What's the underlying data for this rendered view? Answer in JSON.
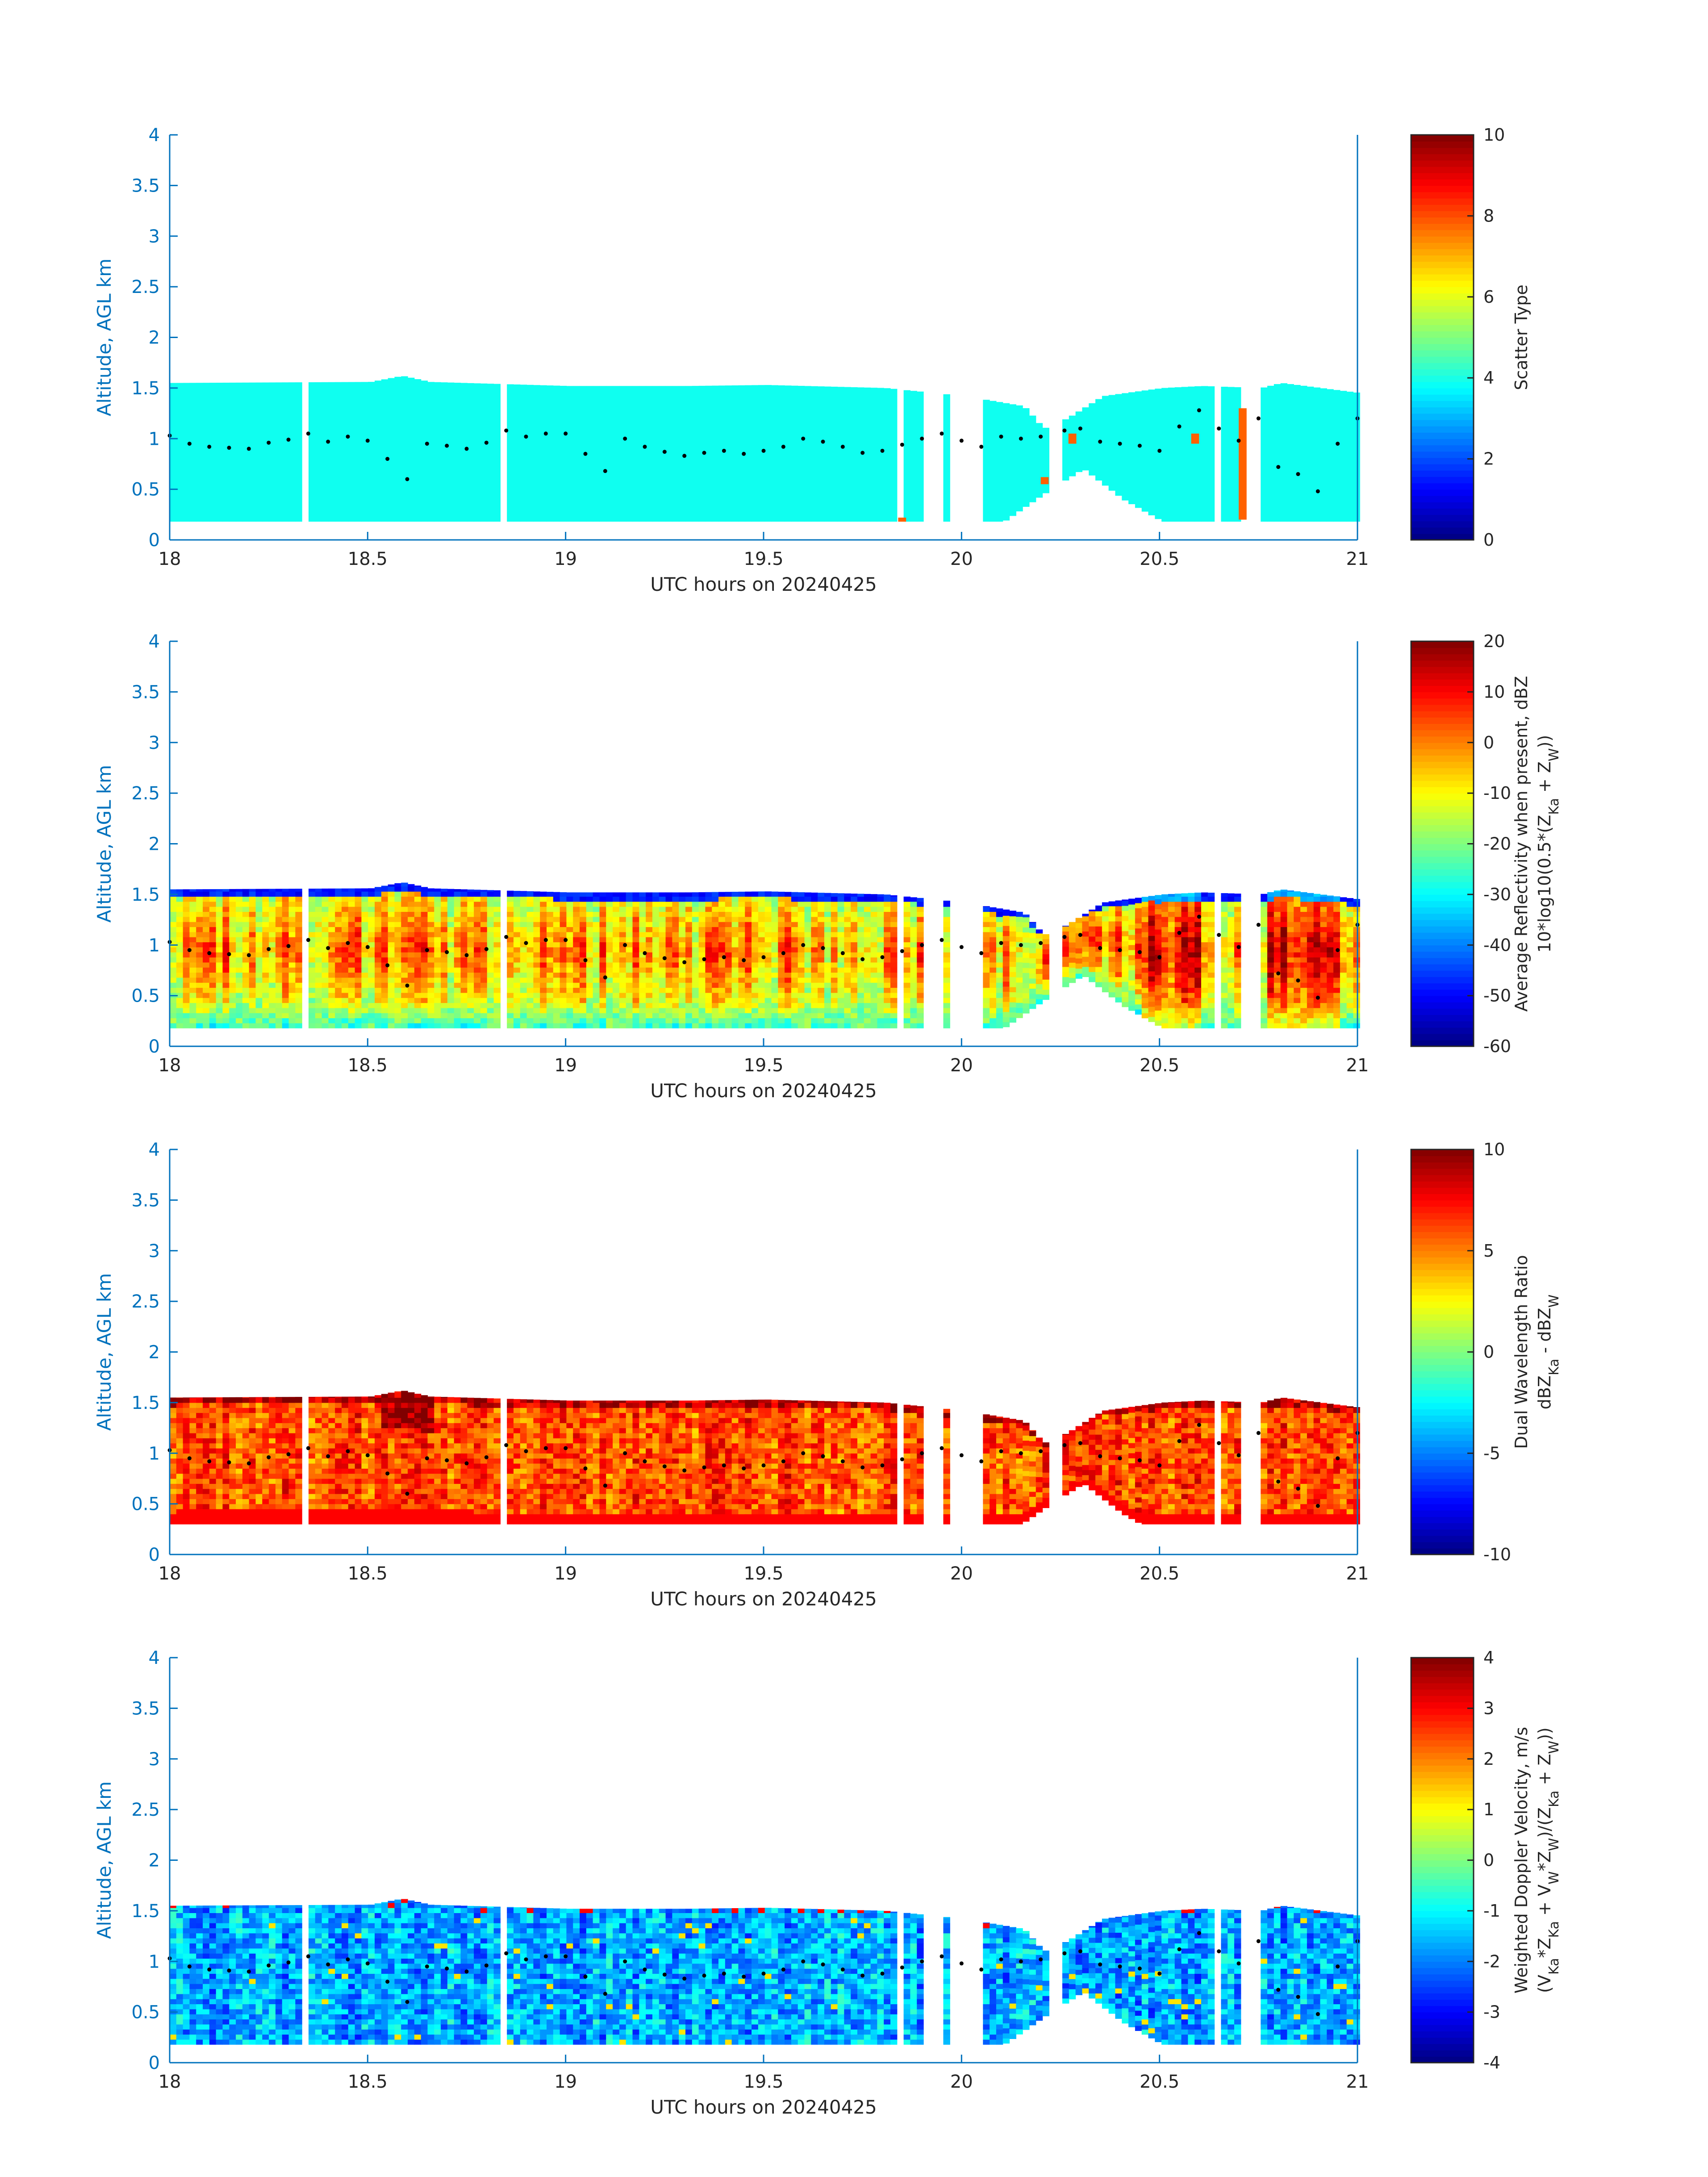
{
  "chart_data": [
    {
      "type": "heatmap",
      "xlabel": "UTC hours on 20240425",
      "ylabel": "Altitude, AGL km",
      "xlim": [
        18,
        21
      ],
      "ylim": [
        0,
        4
      ],
      "xticks": [
        "18",
        "18.5",
        "19",
        "19.5",
        "20",
        "20.5",
        "21"
      ],
      "yticks": [
        "0",
        "0.5",
        "1",
        "1.5",
        "2",
        "2.5",
        "3",
        "3.5",
        "4"
      ],
      "colorbar": {
        "label_lines": [
          "Scatter Type"
        ],
        "range": [
          0,
          10
        ],
        "ticks": [
          "0",
          "2",
          "4",
          "6",
          "8",
          "10"
        ]
      },
      "field": "scatter_type",
      "base_value": 3.9,
      "secondary_value": 7.8
    },
    {
      "type": "heatmap",
      "xlabel": "UTC hours on 20240425",
      "ylabel": "Altitude, AGL km",
      "xlim": [
        18,
        21
      ],
      "ylim": [
        0,
        4
      ],
      "xticks": [
        "18",
        "18.5",
        "19",
        "19.5",
        "20",
        "20.5",
        "21"
      ],
      "yticks": [
        "0",
        "0.5",
        "1",
        "1.5",
        "2",
        "2.5",
        "3",
        "3.5",
        "4"
      ],
      "colorbar": {
        "label_lines": [
          "Average Reflectivity when present, dBZ",
          "10*log10(0.5*(Z_Ka + Z_W))"
        ],
        "range": [
          -60,
          20
        ],
        "ticks": [
          "-60",
          "-50",
          "-40",
          "-30",
          "-20",
          "-10",
          "0",
          "10",
          "20"
        ]
      },
      "field": "reflectivity"
    },
    {
      "type": "heatmap",
      "xlabel": "UTC hours on 20240425",
      "ylabel": "Altitude, AGL km",
      "xlim": [
        18,
        21
      ],
      "ylim": [
        0,
        4
      ],
      "xticks": [
        "18",
        "18.5",
        "19",
        "19.5",
        "20",
        "20.5",
        "21"
      ],
      "yticks": [
        "0",
        "0.5",
        "1",
        "1.5",
        "2",
        "2.5",
        "3",
        "3.5",
        "4"
      ],
      "colorbar": {
        "label_lines": [
          "Dual Wavelength Ratio",
          "dBZ_Ka - dBZ_W"
        ],
        "range": [
          -10,
          10
        ],
        "ticks": [
          "-10",
          "-5",
          "0",
          "5",
          "10"
        ]
      },
      "field": "dwr"
    },
    {
      "type": "heatmap",
      "xlabel": "UTC hours on 20240425",
      "ylabel": "Altitude, AGL km",
      "xlim": [
        18,
        21
      ],
      "ylim": [
        0,
        4
      ],
      "xticks": [
        "18",
        "18.5",
        "19",
        "19.5",
        "20",
        "20.5",
        "21"
      ],
      "yticks": [
        "0",
        "0.5",
        "1",
        "1.5",
        "2",
        "2.5",
        "3",
        "3.5",
        "4"
      ],
      "colorbar": {
        "label_lines": [
          "Weighted Doppler Velocity, m/s",
          "(V_Ka*Z_Ka + V_W*Z_W)/(Z_Ka + Z_W))"
        ],
        "range": [
          -4,
          4
        ],
        "ticks": [
          "-4",
          "-3",
          "-2",
          "-1",
          "0",
          "1",
          "2",
          "3",
          "4"
        ]
      },
      "field": "velocity"
    }
  ],
  "cloud_echo": {
    "base_km": 0.18,
    "gaps_hours": [
      [
        18.32,
        18.35
      ],
      [
        18.82,
        18.84
      ],
      [
        19.83,
        19.85
      ],
      [
        19.9,
        19.94
      ],
      [
        19.97,
        20.04
      ],
      [
        20.22,
        20.25
      ],
      [
        20.63,
        20.65
      ],
      [
        20.69,
        20.74
      ]
    ],
    "top_profile": [
      {
        "t": 18.0,
        "top": 1.55
      },
      {
        "t": 18.5,
        "top": 1.56
      },
      {
        "t": 18.58,
        "top": 1.62
      },
      {
        "t": 18.65,
        "top": 1.56
      },
      {
        "t": 19.0,
        "top": 1.52
      },
      {
        "t": 19.3,
        "top": 1.52
      },
      {
        "t": 19.5,
        "top": 1.53
      },
      {
        "t": 19.8,
        "top": 1.5
      },
      {
        "t": 20.0,
        "top": 1.42
      },
      {
        "t": 20.15,
        "top": 1.32
      },
      {
        "t": 20.2,
        "top": 1.1
      },
      {
        "t": 20.26,
        "top": 1.2
      },
      {
        "t": 20.35,
        "top": 1.42
      },
      {
        "t": 20.5,
        "top": 1.5
      },
      {
        "t": 20.6,
        "top": 1.52
      },
      {
        "t": 20.75,
        "top": 1.5
      },
      {
        "t": 20.8,
        "top": 1.55
      },
      {
        "t": 21.0,
        "top": 1.45
      }
    ],
    "base_profile": [
      {
        "t": 18.0,
        "base": 0.18
      },
      {
        "t": 20.1,
        "base": 0.18
      },
      {
        "t": 20.2,
        "base": 0.45
      },
      {
        "t": 20.3,
        "base": 0.7
      },
      {
        "t": 20.4,
        "base": 0.4
      },
      {
        "t": 20.5,
        "base": 0.18
      },
      {
        "t": 21.0,
        "base": 0.18
      }
    ]
  },
  "cloud_base_dots": [
    {
      "t": 18.0,
      "alt": 1.03
    },
    {
      "t": 18.05,
      "alt": 0.95
    },
    {
      "t": 18.1,
      "alt": 0.92
    },
    {
      "t": 18.15,
      "alt": 0.91
    },
    {
      "t": 18.2,
      "alt": 0.9
    },
    {
      "t": 18.25,
      "alt": 0.96
    },
    {
      "t": 18.3,
      "alt": 0.99
    },
    {
      "t": 18.35,
      "alt": 1.05
    },
    {
      "t": 18.4,
      "alt": 0.97
    },
    {
      "t": 18.45,
      "alt": 1.02
    },
    {
      "t": 18.5,
      "alt": 0.98
    },
    {
      "t": 18.55,
      "alt": 0.8
    },
    {
      "t": 18.6,
      "alt": 0.6
    },
    {
      "t": 18.65,
      "alt": 0.95
    },
    {
      "t": 18.7,
      "alt": 0.93
    },
    {
      "t": 18.75,
      "alt": 0.9
    },
    {
      "t": 18.8,
      "alt": 0.96
    },
    {
      "t": 18.85,
      "alt": 1.08
    },
    {
      "t": 18.9,
      "alt": 1.02
    },
    {
      "t": 18.95,
      "alt": 1.05
    },
    {
      "t": 19.0,
      "alt": 1.05
    },
    {
      "t": 19.05,
      "alt": 0.85
    },
    {
      "t": 19.1,
      "alt": 0.68
    },
    {
      "t": 19.15,
      "alt": 1.0
    },
    {
      "t": 19.2,
      "alt": 0.92
    },
    {
      "t": 19.25,
      "alt": 0.87
    },
    {
      "t": 19.3,
      "alt": 0.83
    },
    {
      "t": 19.35,
      "alt": 0.86
    },
    {
      "t": 19.4,
      "alt": 0.88
    },
    {
      "t": 19.45,
      "alt": 0.85
    },
    {
      "t": 19.5,
      "alt": 0.88
    },
    {
      "t": 19.55,
      "alt": 0.92
    },
    {
      "t": 19.6,
      "alt": 1.0
    },
    {
      "t": 19.65,
      "alt": 0.97
    },
    {
      "t": 19.7,
      "alt": 0.92
    },
    {
      "t": 19.75,
      "alt": 0.86
    },
    {
      "t": 19.8,
      "alt": 0.88
    },
    {
      "t": 19.85,
      "alt": 0.94
    },
    {
      "t": 19.9,
      "alt": 1.0
    },
    {
      "t": 19.95,
      "alt": 1.05
    },
    {
      "t": 20.0,
      "alt": 0.98
    },
    {
      "t": 20.05,
      "alt": 0.92
    },
    {
      "t": 20.1,
      "alt": 1.02
    },
    {
      "t": 20.15,
      "alt": 1.0
    },
    {
      "t": 20.2,
      "alt": 1.02
    },
    {
      "t": 20.26,
      "alt": 1.08
    },
    {
      "t": 20.3,
      "alt": 1.1
    },
    {
      "t": 20.35,
      "alt": 0.97
    },
    {
      "t": 20.4,
      "alt": 0.95
    },
    {
      "t": 20.45,
      "alt": 0.93
    },
    {
      "t": 20.5,
      "alt": 0.88
    },
    {
      "t": 20.55,
      "alt": 1.12
    },
    {
      "t": 20.6,
      "alt": 1.28
    },
    {
      "t": 20.65,
      "alt": 1.1
    },
    {
      "t": 20.7,
      "alt": 0.98
    },
    {
      "t": 20.75,
      "alt": 1.2
    },
    {
      "t": 20.8,
      "alt": 0.72
    },
    {
      "t": 20.85,
      "alt": 0.65
    },
    {
      "t": 20.9,
      "alt": 0.48
    },
    {
      "t": 20.95,
      "alt": 0.95
    },
    {
      "t": 21.0,
      "alt": 1.2
    }
  ]
}
